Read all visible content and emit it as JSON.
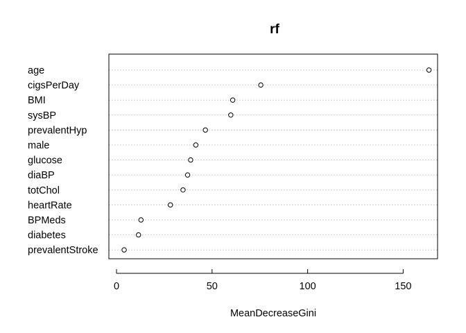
{
  "chart_data": {
    "type": "scatter",
    "title": "rf",
    "xlabel": "MeanDecreaseGini",
    "ylabel": "",
    "xlim": [
      -4,
      168
    ],
    "xticks": [
      0,
      50,
      100,
      150
    ],
    "grid": "horizontal-dotted",
    "categories": [
      "age",
      "cigsPerDay",
      "BMI",
      "sysBP",
      "prevalentHyp",
      "male",
      "glucose",
      "diaBP",
      "totChol",
      "heartRate",
      "BPMeds",
      "diabetes",
      "prevalentStroke"
    ],
    "values": [
      163.5,
      75.5,
      60.8,
      59.8,
      46.5,
      41.5,
      38.8,
      37.2,
      34.8,
      28.2,
      12.8,
      11.5,
      4.0
    ],
    "marker": "open-circle",
    "color": "#000000",
    "grid_color": "#bebebe"
  }
}
